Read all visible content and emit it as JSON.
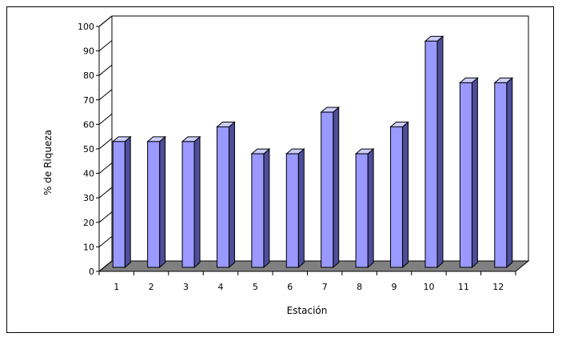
{
  "chart_data": {
    "type": "bar",
    "style": "3d-column",
    "title": "",
    "xlabel": "Estación",
    "ylabel": "% de Riqueza",
    "categories": [
      "1",
      "2",
      "3",
      "4",
      "5",
      "6",
      "7",
      "8",
      "9",
      "10",
      "11",
      "12"
    ],
    "series": [
      {
        "values": [
          53,
          53,
          53,
          59,
          48,
          48,
          65,
          48,
          59,
          94,
          77,
          77
        ]
      }
    ],
    "ylim": [
      0,
      100
    ],
    "yticks": [
      "0",
      "10",
      "20",
      "30",
      "40",
      "50",
      "60",
      "70",
      "80",
      "90",
      "100"
    ],
    "grid": false,
    "legend": "none",
    "colors": {
      "bar_front": "#9999ff",
      "bar_top": "#ccccff",
      "bar_side": "#4d4d99",
      "floor": "#808080",
      "axis": "#000000"
    }
  }
}
